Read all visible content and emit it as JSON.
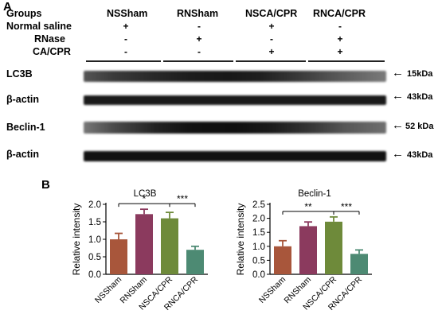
{
  "panels": {
    "a": "A",
    "b": "B"
  },
  "groups_header": "Groups",
  "groups": [
    "NSSham",
    "RNSham",
    "NSCA/CPR",
    "RNCA/CPR"
  ],
  "treatments": [
    {
      "label": "Normal saline",
      "signs": [
        "+",
        "-",
        "+",
        "-"
      ]
    },
    {
      "label": "RNase",
      "signs": [
        "-",
        "+",
        "-",
        "+"
      ]
    },
    {
      "label": "CA/CPR",
      "signs": [
        "-",
        "-",
        "+",
        "+"
      ]
    }
  ],
  "blots": [
    {
      "label": "LC3B",
      "kda": "15kDa",
      "arrow": "←"
    },
    {
      "label": "β-actin",
      "kda": "43kDa",
      "arrow": "←"
    },
    {
      "label": "Beclin-1",
      "kda": "52 kDa",
      "arrow": "←"
    },
    {
      "label": "β-actin",
      "kda": "43kDa",
      "arrow": "←"
    }
  ],
  "chart_data": [
    {
      "type": "bar",
      "title": "LC3B",
      "ylabel": "Relative intensity",
      "xlabel": "",
      "categories": [
        "NSSham",
        "RNSham",
        "NSCA/CPR",
        "RNCA/CPR"
      ],
      "values": [
        1.0,
        1.72,
        1.6,
        0.7
      ],
      "errors": [
        0.17,
        0.14,
        0.17,
        0.1
      ],
      "ylim": [
        0,
        2.0
      ],
      "yticks": [
        "0.0",
        "0.5",
        "1.0",
        "1.5",
        "2.0"
      ],
      "colors": [
        "#a8563b",
        "#8b3a5e",
        "#6e8a3a",
        "#4d8a73"
      ],
      "significance": [
        {
          "from": 0,
          "to": 2,
          "label": "*"
        },
        {
          "from": 2,
          "to": 3,
          "label": "***"
        }
      ]
    },
    {
      "type": "bar",
      "title": "Beclin-1",
      "ylabel": "Relative intensity",
      "xlabel": "",
      "categories": [
        "NSSham",
        "RNSham",
        "NSCA/CPR",
        "RNCA/CPR"
      ],
      "values": [
        1.0,
        1.72,
        1.88,
        0.73
      ],
      "errors": [
        0.2,
        0.15,
        0.17,
        0.14
      ],
      "ylim": [
        0,
        2.5
      ],
      "yticks": [
        "0.0",
        "0.5",
        "1.0",
        "1.5",
        "2.0",
        "2.5"
      ],
      "colors": [
        "#a8563b",
        "#8b3a5e",
        "#6e8a3a",
        "#4d8a73"
      ],
      "significance": [
        {
          "from": 0,
          "to": 2,
          "label": "**"
        },
        {
          "from": 2,
          "to": 3,
          "label": "***"
        }
      ]
    }
  ]
}
